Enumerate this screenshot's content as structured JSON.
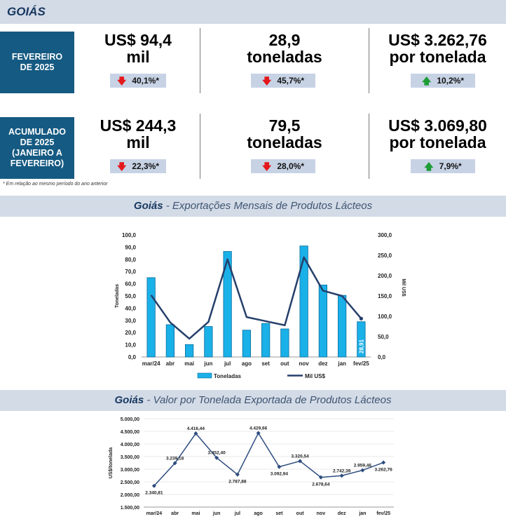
{
  "header": {
    "title": "GOIÁS"
  },
  "rows": [
    {
      "label": "FEVEREIRO\nDE 2025",
      "metrics": [
        {
          "line1": "US$ 94,4",
          "line2": "mil",
          "change": "40,1%*",
          "direction": "down"
        },
        {
          "line1": "28,9",
          "line2": "toneladas",
          "change": "45,7%*",
          "direction": "down"
        },
        {
          "line1": "US$ 3.262,76",
          "line2": "por tonelada",
          "change": "10,2%*",
          "direction": "up"
        }
      ]
    },
    {
      "label": "ACUMULADO\nDE 2025\n(JANEIRO A\nFEVEREIRO)",
      "metrics": [
        {
          "line1": "US$ 244,3",
          "line2": "mil",
          "change": "22,3%*",
          "direction": "down"
        },
        {
          "line1": "79,5",
          "line2": "toneladas",
          "change": "28,0%*",
          "direction": "down"
        },
        {
          "line1": "US$ 3.069,80",
          "line2": "por tonelada",
          "change": "7,9%*",
          "direction": "up"
        }
      ]
    }
  ],
  "footnote": "* Em relação ao mesmo período do ano anterior",
  "colors": {
    "navy": "#155a82",
    "bar": "#1ab0e8",
    "line": "#253f6b",
    "down": "#e4181c",
    "up": "#1f9c36"
  },
  "chart_data": [
    {
      "type": "bar",
      "section_title_bold": "Goiás",
      "section_title_rest": " - Exportações Mensais de Produtos Lácteos",
      "categories": [
        "mar/24",
        "abr",
        "mai",
        "jun",
        "jul",
        "ago",
        "set",
        "out",
        "nov",
        "dez",
        "jan",
        "fev/25"
      ],
      "series": [
        {
          "name": "Toneladas",
          "type": "bar",
          "axis": "left",
          "values": [
            65.0,
            26.5,
            10.2,
            25.0,
            86.5,
            22.0,
            27.5,
            23.0,
            91.0,
            59.0,
            50.5,
            28.91
          ]
        },
        {
          "name": "Mil US$",
          "type": "line",
          "axis": "right",
          "values": [
            152,
            85,
            45,
            86,
            240,
            98,
            88,
            78,
            245,
            163,
            150,
            94.4
          ]
        }
      ],
      "data_label": "28,91",
      "ylabel_left": "Toneladas",
      "ylabel_right": "Mil US$",
      "ylim_left": [
        0,
        100
      ],
      "ylim_right": [
        0,
        300
      ],
      "left_ticks": [
        "0,0",
        "10,0",
        "20,0",
        "30,0",
        "40,0",
        "50,0",
        "60,0",
        "70,0",
        "80,0",
        "90,0",
        "100,0"
      ],
      "right_ticks": [
        "0,0",
        "50,0",
        "100,0",
        "150,0",
        "200,0",
        "250,0",
        "300,0"
      ],
      "legend": [
        "Toneladas",
        "Mil US$"
      ]
    },
    {
      "type": "line",
      "section_title_bold": "Goiás",
      "section_title_rest": " - Valor por Tonelada Exportada de Produtos Lácteos",
      "categories": [
        "mar/24",
        "abr",
        "mai",
        "jun",
        "jul",
        "ago",
        "set",
        "out",
        "nov",
        "dez",
        "jan",
        "fev/25"
      ],
      "values": [
        2340.81,
        3239.18,
        4416.44,
        3452.4,
        2787.88,
        4429.66,
        3092.94,
        3320.54,
        2678.64,
        2742.39,
        2959.46,
        3262.76
      ],
      "labels": [
        "2.340,81",
        "3.239,18",
        "4.416,44",
        "3.452,40",
        "2.787,88",
        "4.429,66",
        "3.092,94",
        "3.320,54",
        "2.678,64",
        "2.742,39",
        "2.959,46",
        "3.262,76"
      ],
      "ylabel": "US$/tonelada",
      "ylim": [
        1500,
        5000
      ],
      "y_ticks": [
        "1.500,00",
        "2.000,00",
        "2.500,00",
        "3.000,00",
        "3.500,00",
        "4.000,00",
        "4.500,00",
        "5.000,00"
      ]
    }
  ]
}
